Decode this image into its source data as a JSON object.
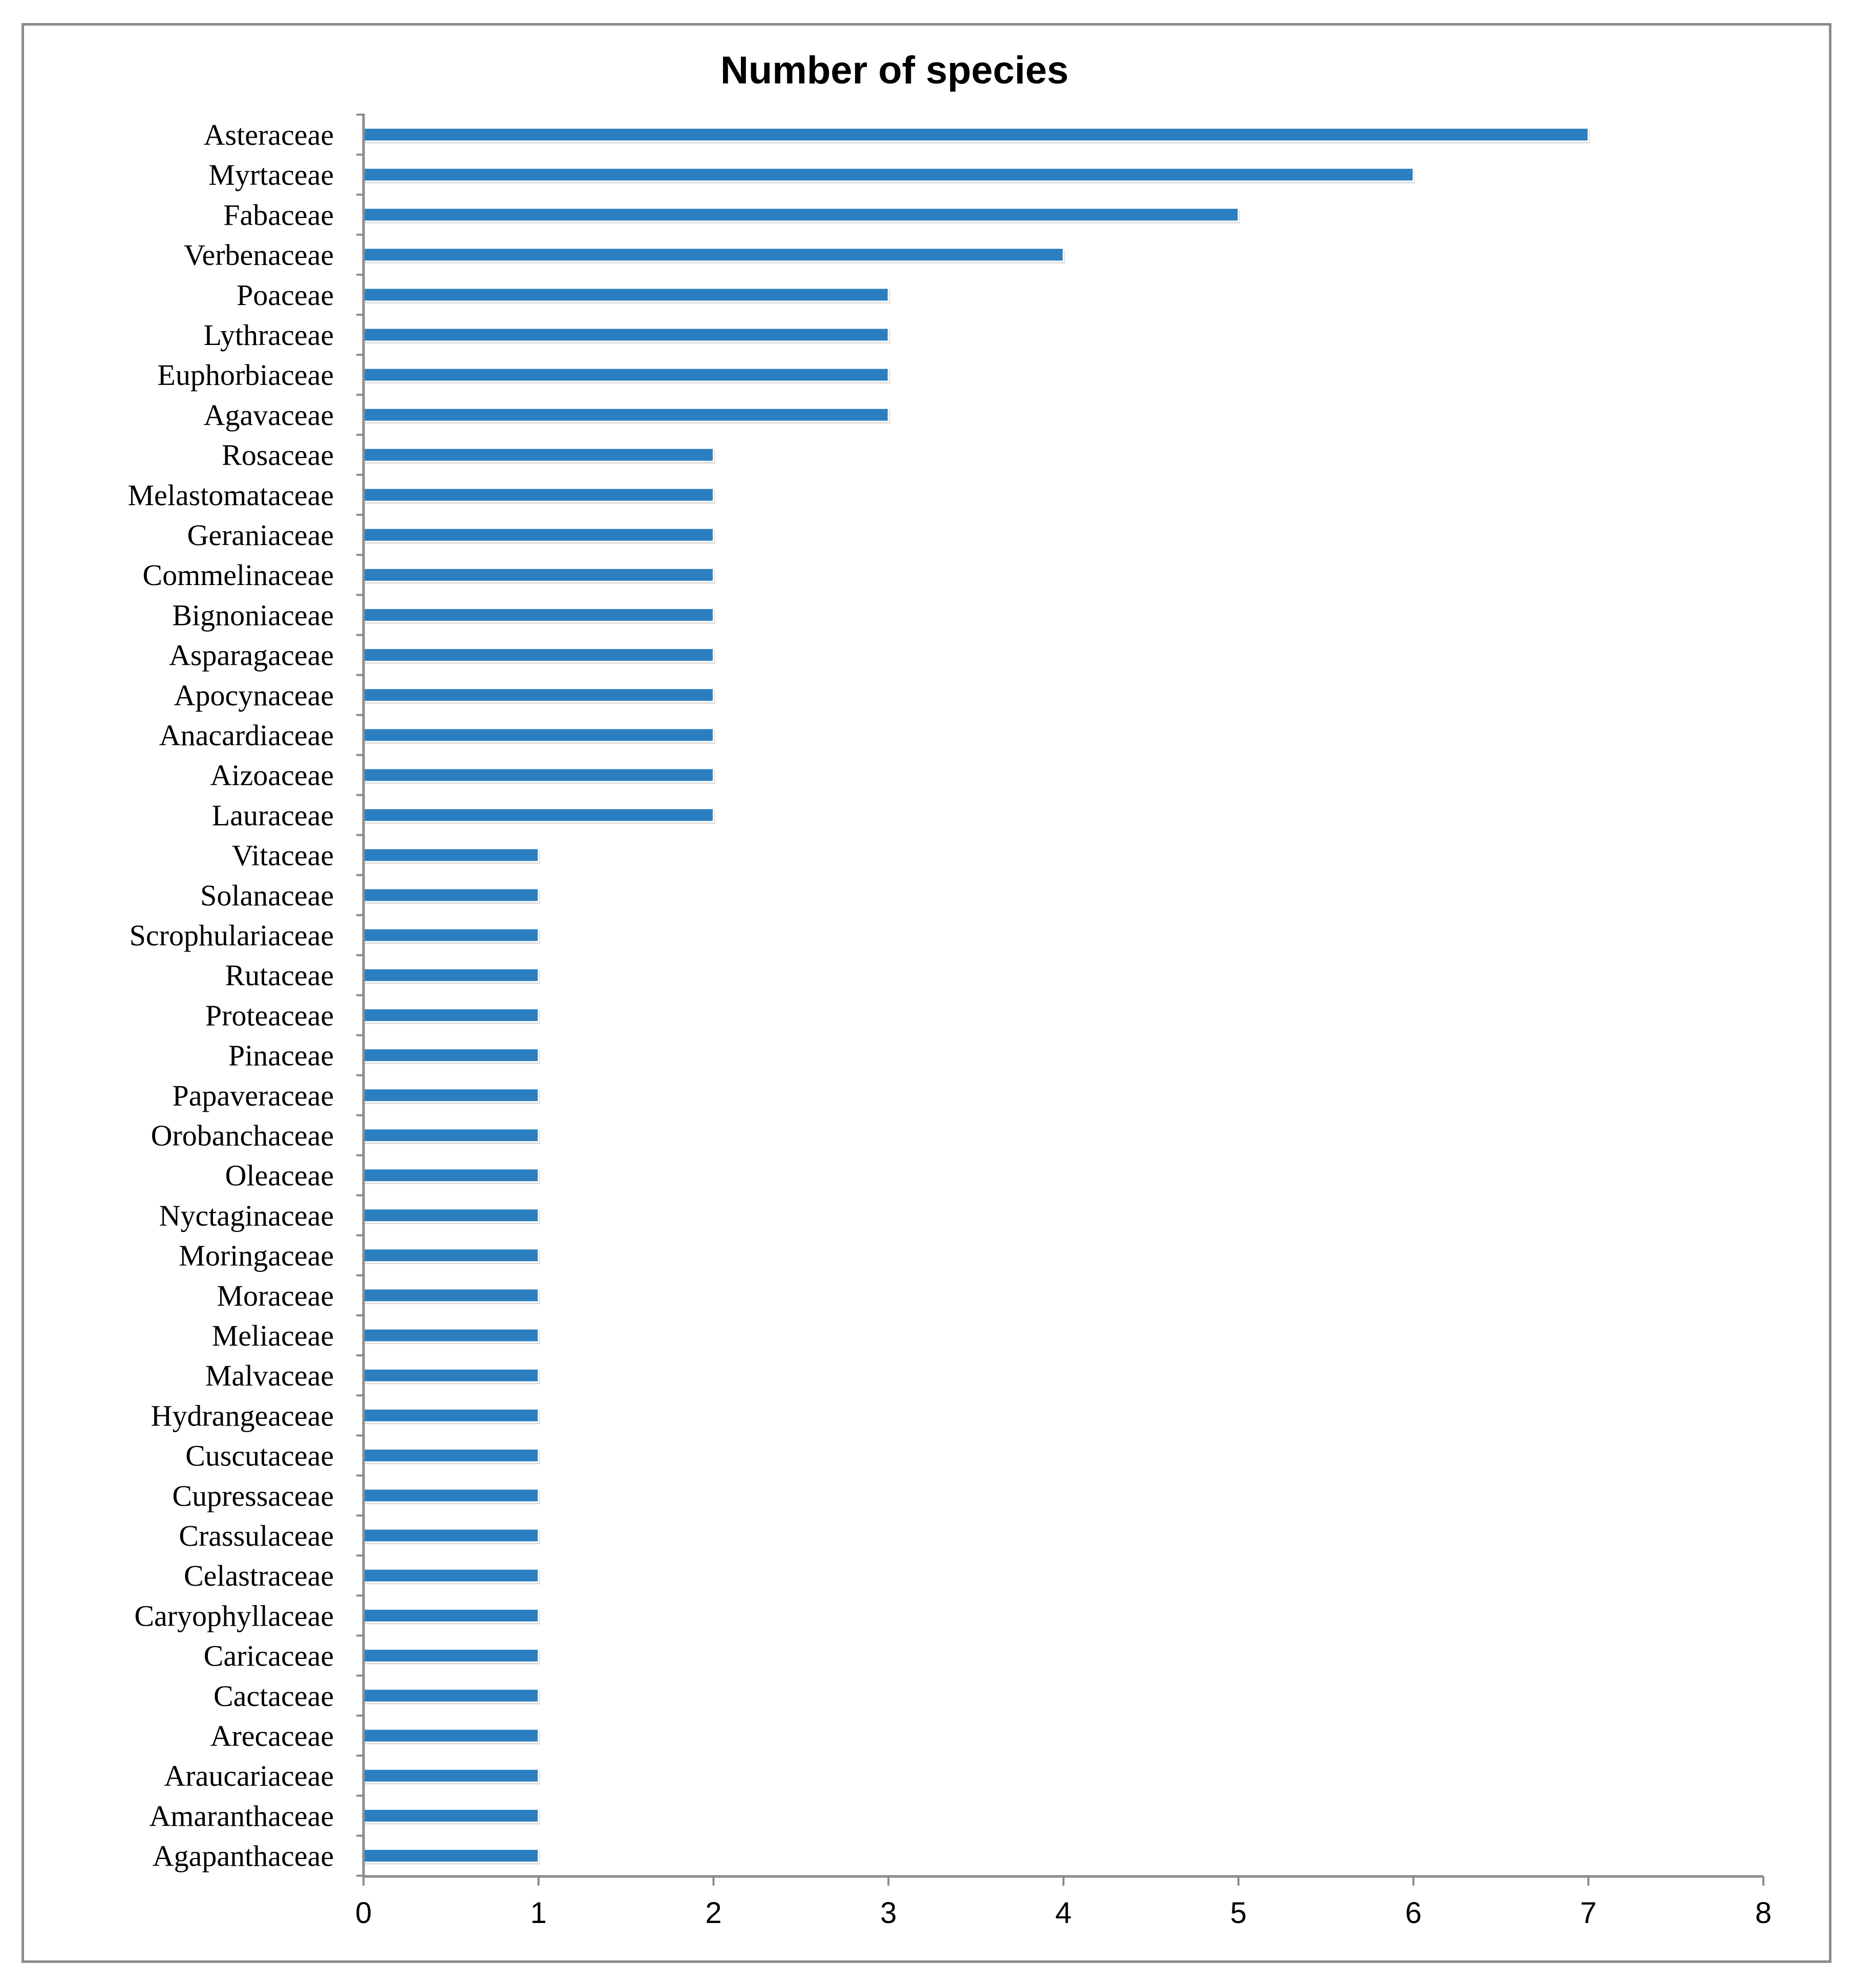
{
  "chart_data": {
    "type": "bar",
    "orientation": "horizontal",
    "title": "Number of species",
    "xlabel": "",
    "ylabel": "",
    "xlim": [
      0,
      8
    ],
    "x_ticks": [
      "0",
      "1",
      "2",
      "3",
      "4",
      "5",
      "6",
      "7",
      "8"
    ],
    "grid": false,
    "legend": "none",
    "bar_color": "#2b7fc0",
    "bar_shadow_color": "#ffffff",
    "frame_color": "#8c8c8c",
    "axis_color": "#8c8c8c",
    "categories": [
      "Asteraceae",
      "Myrtaceae",
      "Fabaceae",
      "Verbenaceae",
      "Poaceae",
      "Lythraceae",
      "Euphorbiaceae",
      "Agavaceae",
      "Rosaceae",
      "Melastomataceae",
      "Geraniaceae",
      "Commelinaceae",
      "Bignoniaceae",
      "Asparagaceae",
      "Apocynaceae",
      "Anacardiaceae",
      "Aizoaceae",
      "Lauraceae",
      "Vitaceae",
      "Solanaceae",
      "Scrophulariaceae",
      "Rutaceae",
      "Proteaceae",
      "Pinaceae",
      "Papaveraceae",
      "Orobanchaceae",
      "Oleaceae",
      "Nyctaginaceae",
      "Moringaceae",
      "Moraceae",
      "Meliaceae",
      "Malvaceae",
      "Hydrangeaceae",
      "Cuscutaceae",
      "Cupressaceae",
      "Crassulaceae",
      "Celastraceae",
      "Caryophyllaceae",
      "Caricaceae",
      "Cactaceae",
      "Arecaceae",
      "Araucariaceae",
      "Amaranthaceae",
      "Agapanthaceae"
    ],
    "values": [
      7,
      6,
      5,
      4,
      3,
      3,
      3,
      3,
      2,
      2,
      2,
      2,
      2,
      2,
      2,
      2,
      2,
      2,
      1,
      1,
      1,
      1,
      1,
      1,
      1,
      1,
      1,
      1,
      1,
      1,
      1,
      1,
      1,
      1,
      1,
      1,
      1,
      1,
      1,
      1,
      1,
      1,
      1,
      1
    ]
  }
}
